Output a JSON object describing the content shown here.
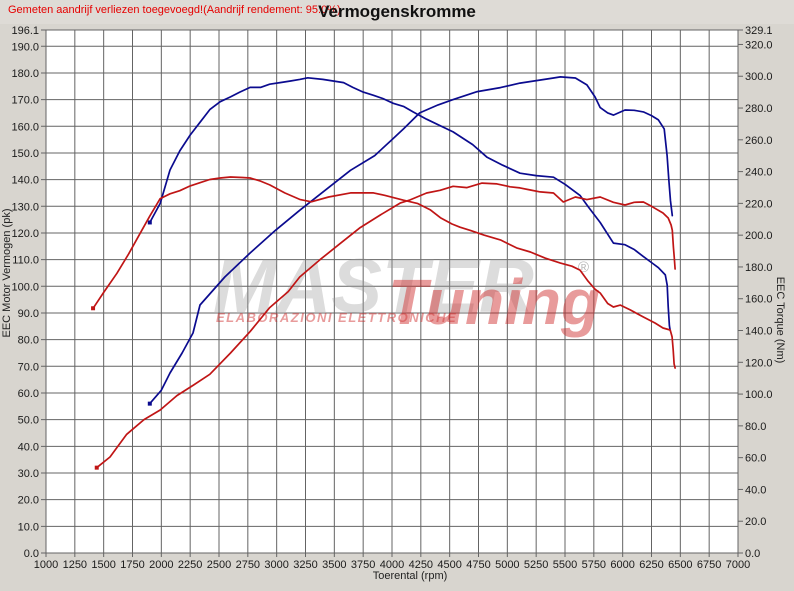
{
  "window": {
    "title": "Vermogenskromme",
    "warning": "Gemeten aandrijf verliezen toegevoegd!(Aandrijf rendement: 95.0%)"
  },
  "watermark": {
    "master": "MASTER",
    "tuning": "Tuning",
    "registered": "®",
    "subtext": "ELABORAZIONI ELETTRONICHE"
  },
  "colors": {
    "background": "#d8d5cf",
    "titlebar": "#dedbd6",
    "plot_background": "#ffffff",
    "grid": "#646464",
    "axis_text": "#1b1b1b",
    "tuned_curve": "#0b0b8f",
    "original_curve": "#c01515",
    "warning_text": "#e60000",
    "watermark_gray": "#9a9a9a",
    "watermark_red": "#cc2222"
  },
  "chart_data": {
    "type": "line",
    "title": "Vermogenskromme",
    "xlabel": "Toerental (rpm)",
    "ylabel_left": "EEC Motor Vermogen (pk)",
    "ylabel_right": "EEC Torque (Nm)",
    "grid": true,
    "legend": "none",
    "x_range": [
      1000,
      7000
    ],
    "y_left_range": [
      0,
      196.1
    ],
    "y_right_range": [
      0,
      329.1
    ],
    "x_ticks": [
      1000,
      1250,
      1500,
      1750,
      2000,
      2250,
      2500,
      2750,
      3000,
      3250,
      3500,
      3750,
      4000,
      4250,
      4500,
      4750,
      5000,
      5250,
      5500,
      5750,
      6000,
      6250,
      6500,
      6750,
      7000
    ],
    "y_left_ticks": [
      196.1,
      190,
      180,
      170,
      160,
      150,
      140,
      130,
      120,
      110,
      100,
      90,
      80,
      70,
      60,
      50,
      40,
      30,
      20,
      10,
      0
    ],
    "y_right_ticks": [
      329.1,
      320,
      300,
      280,
      260,
      240,
      220,
      200,
      180,
      160,
      140,
      120,
      100,
      80,
      60,
      40,
      20,
      0
    ],
    "series": [
      {
        "name": "tuned-power-pk",
        "axis": "left",
        "color": "#0b0b8f",
        "points": [
          [
            1900,
            56
          ],
          [
            2000,
            61
          ],
          [
            2075,
            67.5
          ],
          [
            2180,
            75
          ],
          [
            2275,
            82.5
          ],
          [
            2335,
            93
          ],
          [
            2550,
            103.5
          ],
          [
            2770,
            112.5
          ],
          [
            2990,
            121
          ],
          [
            3200,
            128.5
          ],
          [
            3420,
            136
          ],
          [
            3640,
            143.5
          ],
          [
            3850,
            149
          ],
          [
            4000,
            155
          ],
          [
            4100,
            159
          ],
          [
            4240,
            165
          ],
          [
            4400,
            168
          ],
          [
            4530,
            170
          ],
          [
            4740,
            173
          ],
          [
            4940,
            174.5
          ],
          [
            5110,
            176.2
          ],
          [
            5280,
            177.3
          ],
          [
            5400,
            178.1
          ],
          [
            5460,
            178.5
          ],
          [
            5590,
            178.1
          ],
          [
            5690,
            175.5
          ],
          [
            5760,
            171
          ],
          [
            5805,
            167
          ],
          [
            5870,
            165
          ],
          [
            5920,
            164.2
          ],
          [
            6020,
            166.1
          ],
          [
            6100,
            166
          ],
          [
            6180,
            165.4
          ],
          [
            6250,
            164
          ],
          [
            6310,
            162.4
          ],
          [
            6360,
            159
          ],
          [
            6385,
            149
          ],
          [
            6400,
            140
          ],
          [
            6415,
            132
          ],
          [
            6430,
            126.5
          ]
        ]
      },
      {
        "name": "tuned-torque-nm",
        "axis": "right",
        "color": "#0b0b8f",
        "points": [
          [
            1900,
            208
          ],
          [
            1990,
            220
          ],
          [
            2075,
            241
          ],
          [
            2160,
            253
          ],
          [
            2250,
            263
          ],
          [
            2335,
            271
          ],
          [
            2420,
            279
          ],
          [
            2510,
            284
          ],
          [
            2600,
            287
          ],
          [
            2680,
            290
          ],
          [
            2770,
            293
          ],
          [
            2860,
            293
          ],
          [
            2940,
            295
          ],
          [
            3030,
            296
          ],
          [
            3120,
            297
          ],
          [
            3200,
            298
          ],
          [
            3270,
            299
          ],
          [
            3400,
            298
          ],
          [
            3490,
            297
          ],
          [
            3580,
            296
          ],
          [
            3660,
            293
          ],
          [
            3750,
            290
          ],
          [
            3840,
            288
          ],
          [
            3920,
            286
          ],
          [
            4010,
            283
          ],
          [
            4100,
            281
          ],
          [
            4185,
            277.5
          ],
          [
            4300,
            273
          ],
          [
            4530,
            265
          ],
          [
            4700,
            257
          ],
          [
            4825,
            249
          ],
          [
            4960,
            244
          ],
          [
            5110,
            239
          ],
          [
            5250,
            237.5
          ],
          [
            5400,
            236.5
          ],
          [
            5500,
            232
          ],
          [
            5630,
            225
          ],
          [
            5700,
            218
          ],
          [
            5805,
            208
          ],
          [
            5920,
            195
          ],
          [
            6020,
            194
          ],
          [
            6100,
            191
          ],
          [
            6180,
            186.5
          ],
          [
            6255,
            182.5
          ],
          [
            6310,
            179.5
          ],
          [
            6370,
            175
          ],
          [
            6386,
            168.5
          ],
          [
            6395,
            155
          ],
          [
            6405,
            143
          ],
          [
            6412,
            140
          ]
        ]
      },
      {
        "name": "original-power-pk",
        "axis": "left",
        "color": "#c01515",
        "points": [
          [
            1440,
            32
          ],
          [
            1555,
            36
          ],
          [
            1700,
            44.5
          ],
          [
            1850,
            50
          ],
          [
            1990,
            53.6
          ],
          [
            2135,
            59
          ],
          [
            2280,
            63
          ],
          [
            2420,
            67
          ],
          [
            2600,
            75
          ],
          [
            2770,
            83
          ],
          [
            2940,
            92
          ],
          [
            3100,
            98
          ],
          [
            3200,
            103.5
          ],
          [
            3377,
            110
          ],
          [
            3550,
            116
          ],
          [
            3724,
            122
          ],
          [
            3897,
            126.7
          ],
          [
            4070,
            131.2
          ],
          [
            4157,
            132.4
          ],
          [
            4300,
            135
          ],
          [
            4417,
            136
          ],
          [
            4530,
            137.5
          ],
          [
            4650,
            137
          ],
          [
            4780,
            138.7
          ],
          [
            4910,
            138.4
          ],
          [
            5024,
            137.3
          ],
          [
            5110,
            136.9
          ],
          [
            5200,
            136.1
          ],
          [
            5285,
            135.4
          ],
          [
            5400,
            135
          ],
          [
            5485,
            131.6
          ],
          [
            5590,
            133.5
          ],
          [
            5690,
            132.5
          ],
          [
            5805,
            133.5
          ],
          [
            5920,
            131.5
          ],
          [
            6020,
            130.5
          ],
          [
            6100,
            131.5
          ],
          [
            6180,
            131.6
          ],
          [
            6250,
            130
          ],
          [
            6350,
            127.5
          ],
          [
            6395,
            125.6
          ],
          [
            6420,
            123
          ],
          [
            6430,
            121
          ],
          [
            6440,
            114.7
          ],
          [
            6448,
            110.6
          ],
          [
            6455,
            106.5
          ]
        ]
      },
      {
        "name": "original-torque-nm",
        "axis": "right",
        "color": "#c01515",
        "points": [
          [
            1408,
            154
          ],
          [
            1500,
            164
          ],
          [
            1615,
            176
          ],
          [
            1715,
            188
          ],
          [
            1815,
            201
          ],
          [
            1900,
            212
          ],
          [
            1990,
            223
          ],
          [
            2075,
            226
          ],
          [
            2160,
            228
          ],
          [
            2250,
            231
          ],
          [
            2335,
            233
          ],
          [
            2420,
            235
          ],
          [
            2510,
            236
          ],
          [
            2600,
            236.6
          ],
          [
            2700,
            236.3
          ],
          [
            2770,
            236
          ],
          [
            2860,
            234
          ],
          [
            2940,
            231.6
          ],
          [
            3070,
            226.6
          ],
          [
            3200,
            222.5
          ],
          [
            3300,
            221
          ],
          [
            3450,
            224
          ],
          [
            3640,
            226.6
          ],
          [
            3840,
            226.6
          ],
          [
            3940,
            225
          ],
          [
            4100,
            222
          ],
          [
            4220,
            220
          ],
          [
            4330,
            216
          ],
          [
            4420,
            211
          ],
          [
            4520,
            207
          ],
          [
            4590,
            205
          ],
          [
            4680,
            203
          ],
          [
            4800,
            200
          ],
          [
            4940,
            197
          ],
          [
            5080,
            192
          ],
          [
            5200,
            189.4
          ],
          [
            5330,
            185.5
          ],
          [
            5460,
            182.4
          ],
          [
            5560,
            180.5
          ],
          [
            5630,
            178
          ],
          [
            5700,
            171
          ],
          [
            5760,
            166
          ],
          [
            5805,
            163.6
          ],
          [
            5870,
            157
          ],
          [
            5920,
            154.8
          ],
          [
            5980,
            156
          ],
          [
            6065,
            153
          ],
          [
            6180,
            148.5
          ],
          [
            6280,
            144.7
          ],
          [
            6350,
            141.6
          ],
          [
            6412,
            140.3
          ],
          [
            6429,
            136
          ],
          [
            6438,
            127.7
          ],
          [
            6446,
            119
          ],
          [
            6455,
            116.4
          ]
        ]
      }
    ]
  }
}
